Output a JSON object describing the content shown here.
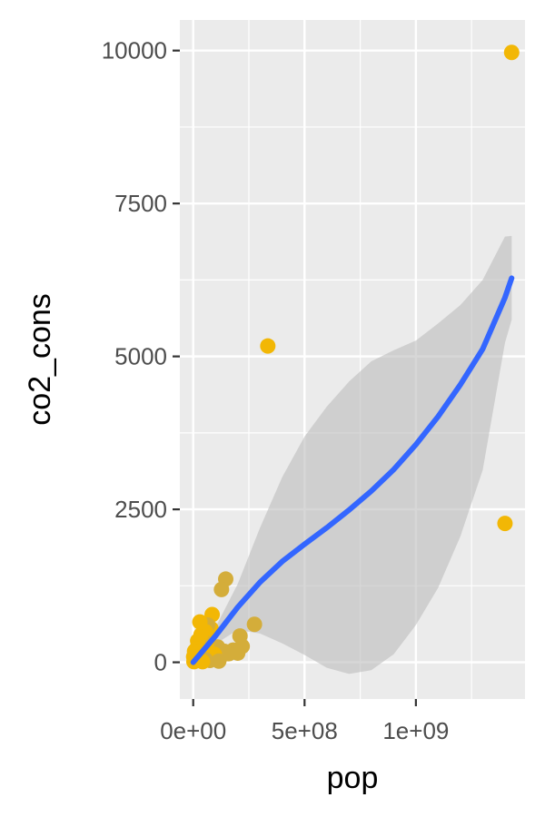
{
  "chart_data": {
    "type": "scatter",
    "xlabel": "pop",
    "ylabel": "co2_cons",
    "xlim": [
      -60000000,
      1490000000
    ],
    "ylim": [
      -600,
      10500
    ],
    "x_ticks": [
      0,
      500000000,
      1000000000
    ],
    "x_tick_labels": [
      "0e+00",
      "5e+08",
      "1e+09"
    ],
    "x_minor_ticks": [
      250000000,
      750000000,
      1250000000
    ],
    "y_ticks": [
      0,
      2500,
      5000,
      7500,
      10000
    ],
    "y_tick_labels": [
      "0",
      "2500",
      "5000",
      "7500",
      "10000"
    ],
    "y_minor_ticks": [
      1250,
      3750,
      6250,
      8750
    ],
    "grid": true,
    "panel_background": "#ebebeb",
    "grid_color": "#ffffff",
    "point_colors": [
      "#f2b705",
      "#d4ad3a"
    ],
    "smooth_color": "#3366ff",
    "ribbon_color": "#bdbdbd",
    "points": [
      {
        "x": 1430000000,
        "y": 9970,
        "color": "#f2b705"
      },
      {
        "x": 1400000000,
        "y": 2270,
        "color": "#f2b705"
      },
      {
        "x": 335000000,
        "y": 5170,
        "color": "#f2b705"
      },
      {
        "x": 146000000,
        "y": 1360,
        "color": "#d4ad3a"
      },
      {
        "x": 127000000,
        "y": 1190,
        "color": "#d4ad3a"
      },
      {
        "x": 275000000,
        "y": 620,
        "color": "#d4ad3a"
      },
      {
        "x": 210000000,
        "y": 430,
        "color": "#d4ad3a"
      },
      {
        "x": 220000000,
        "y": 260,
        "color": "#d4ad3a"
      },
      {
        "x": 200000000,
        "y": 150,
        "color": "#d4ad3a"
      },
      {
        "x": 180000000,
        "y": 200,
        "color": "#d4ad3a"
      },
      {
        "x": 160000000,
        "y": 140,
        "color": "#d4ad3a"
      },
      {
        "x": 140000000,
        "y": 180,
        "color": "#d4ad3a"
      },
      {
        "x": 125000000,
        "y": 100,
        "color": "#d4ad3a"
      },
      {
        "x": 110000000,
        "y": 250,
        "color": "#d4ad3a"
      },
      {
        "x": 100000000,
        "y": 60,
        "color": "#d4ad3a"
      },
      {
        "x": 85000000,
        "y": 780,
        "color": "#f2b705"
      },
      {
        "x": 80000000,
        "y": 550,
        "color": "#f2b705"
      },
      {
        "x": 70000000,
        "y": 420,
        "color": "#f2b705"
      },
      {
        "x": 65000000,
        "y": 610,
        "color": "#d4ad3a"
      },
      {
        "x": 60000000,
        "y": 300,
        "color": "#f2b705"
      },
      {
        "x": 55000000,
        "y": 500,
        "color": "#f2b705"
      },
      {
        "x": 50000000,
        "y": 200,
        "color": "#f2b705"
      },
      {
        "x": 45000000,
        "y": 350,
        "color": "#d4ad3a"
      },
      {
        "x": 40000000,
        "y": 120,
        "color": "#f2b705"
      },
      {
        "x": 35000000,
        "y": 450,
        "color": "#f2b705"
      },
      {
        "x": 30000000,
        "y": 660,
        "color": "#f2b705"
      },
      {
        "x": 28000000,
        "y": 250,
        "color": "#d4ad3a"
      },
      {
        "x": 25000000,
        "y": 80,
        "color": "#f2b705"
      },
      {
        "x": 20000000,
        "y": 350,
        "color": "#f2b705"
      },
      {
        "x": 18000000,
        "y": 150,
        "color": "#d4ad3a"
      },
      {
        "x": 15000000,
        "y": 220,
        "color": "#f2b705"
      },
      {
        "x": 12000000,
        "y": 50,
        "color": "#f2b705"
      },
      {
        "x": 10000000,
        "y": 120,
        "color": "#d4ad3a"
      },
      {
        "x": 8000000,
        "y": 20,
        "color": "#f2b705"
      },
      {
        "x": 6000000,
        "y": 180,
        "color": "#f2b705"
      },
      {
        "x": 5000000,
        "y": 60,
        "color": "#d4ad3a"
      },
      {
        "x": 3000000,
        "y": 10,
        "color": "#f2b705"
      },
      {
        "x": 2000000,
        "y": 90,
        "color": "#f2b705"
      },
      {
        "x": 75000000,
        "y": 30,
        "color": "#d4ad3a"
      },
      {
        "x": 95000000,
        "y": 130,
        "color": "#f2b705"
      },
      {
        "x": 115000000,
        "y": 20,
        "color": "#d4ad3a"
      },
      {
        "x": 55000000,
        "y": 40,
        "color": "#d4ad3a"
      },
      {
        "x": 42000000,
        "y": 10,
        "color": "#f2b705"
      }
    ],
    "smooth": {
      "x": [
        0,
        100000000,
        200000000,
        300000000,
        400000000,
        500000000,
        600000000,
        700000000,
        800000000,
        900000000,
        1000000000,
        1100000000,
        1200000000,
        1300000000,
        1400000000,
        1430000000
      ],
      "y": [
        0,
        430,
        900,
        1310,
        1650,
        1930,
        2200,
        2490,
        2800,
        3150,
        3560,
        4020,
        4540,
        5120,
        5960,
        6280
      ],
      "lower": [
        0,
        300,
        530,
        470,
        310,
        120,
        -90,
        -190,
        -130,
        130,
        610,
        1220,
        2060,
        3140,
        5220,
        5600
      ],
      "upper": [
        0,
        570,
        1280,
        2200,
        3030,
        3690,
        4180,
        4590,
        4920,
        5100,
        5260,
        5540,
        5840,
        6250,
        6960,
        6970
      ]
    }
  }
}
